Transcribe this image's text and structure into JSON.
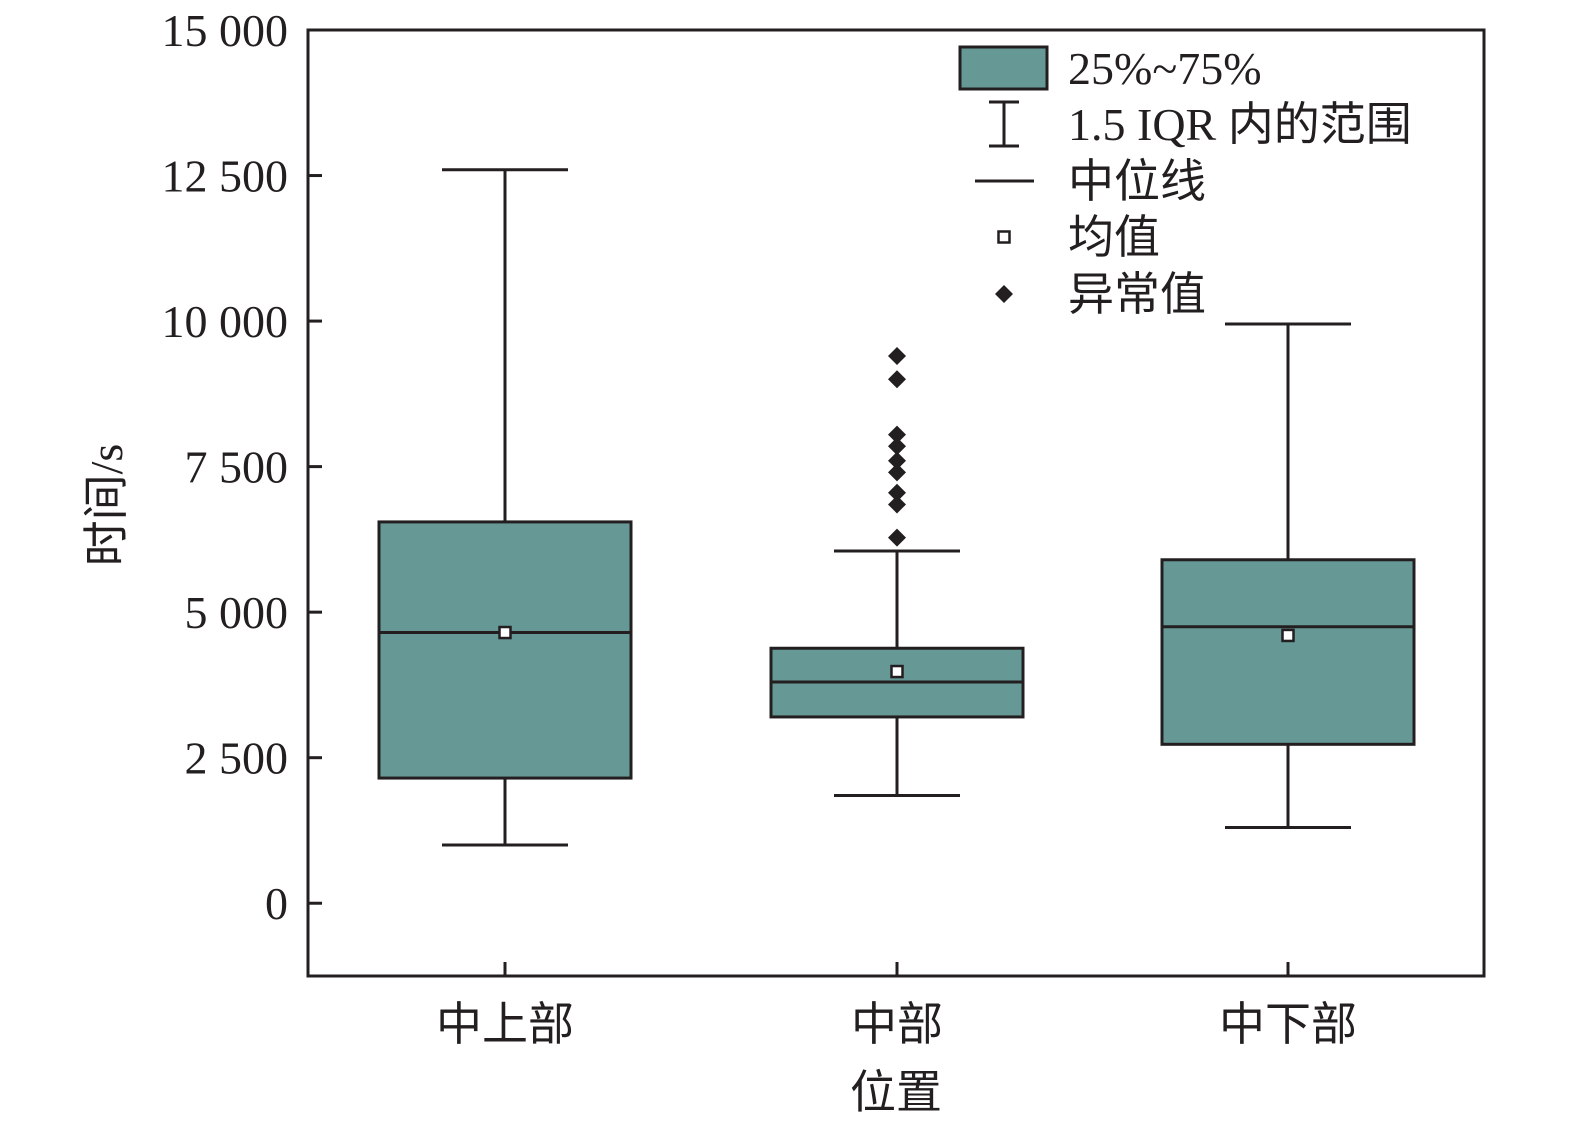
{
  "chart_data": {
    "type": "box",
    "xlabel": "位置",
    "ylabel": "时间/s",
    "ylim": [
      -1250,
      15000
    ],
    "yticks": [
      0,
      2500,
      5000,
      7500,
      10000,
      12500,
      15000
    ],
    "ytick_labels": [
      "0",
      "2 500",
      "5 000",
      "7 500",
      "10 000",
      "12 500",
      "15 000"
    ],
    "grid": false,
    "legend_position": "top-right",
    "colors": {
      "box_fill": "#669896",
      "stroke": "#231f20"
    },
    "legend": [
      {
        "key": "box",
        "label": "25%~75%",
        "symbol": "filled-rectangle"
      },
      {
        "key": "whisker",
        "label": "1.5 IQR 内的范围",
        "symbol": "i-beam"
      },
      {
        "key": "median",
        "label": "中位线",
        "symbol": "line"
      },
      {
        "key": "mean",
        "label": "均值",
        "symbol": "hollow-square"
      },
      {
        "key": "outlier",
        "label": "异常值",
        "symbol": "diamond"
      }
    ],
    "categories": [
      "中上部",
      "中部",
      "中下部"
    ],
    "boxes": [
      {
        "category": "中上部",
        "whisker_low": 1000,
        "q1": 2150,
        "median": 4650,
        "q3": 6550,
        "whisker_high": 12600,
        "mean": 4650,
        "outliers": []
      },
      {
        "category": "中部",
        "whisker_low": 1850,
        "q1": 3200,
        "median": 3800,
        "q3": 4380,
        "whisker_high": 6050,
        "mean": 3980,
        "outliers": [
          6280,
          6850,
          7050,
          7400,
          7600,
          7850,
          8050,
          9000,
          9400
        ]
      },
      {
        "category": "中下部",
        "whisker_low": 1300,
        "q1": 2730,
        "median": 4750,
        "q3": 5900,
        "whisker_high": 9950,
        "mean": 4600,
        "outliers": []
      }
    ]
  }
}
